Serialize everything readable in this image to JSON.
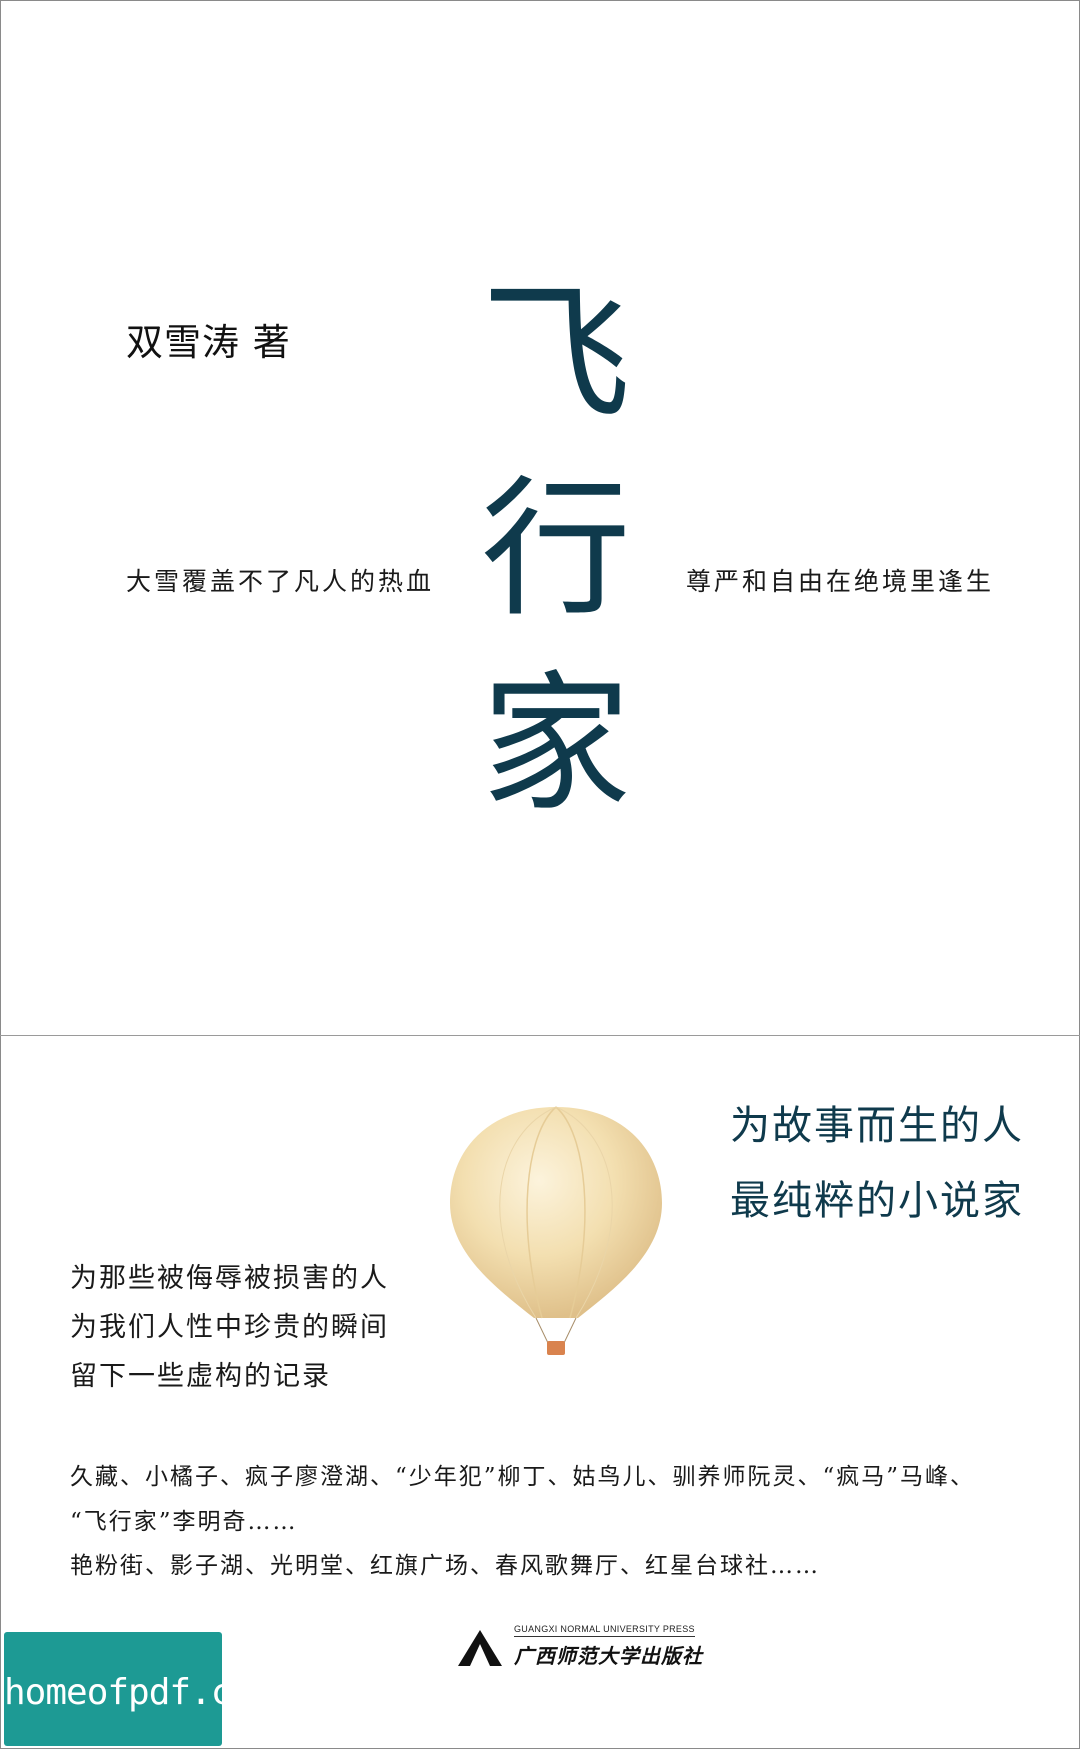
{
  "cover": {
    "author": "双雪涛 著",
    "title_chars": [
      "飞",
      "行",
      "家"
    ],
    "tagline_left": "大雪覆盖不了凡人的热血",
    "tagline_right": "尊严和自由在绝境里逢生"
  },
  "back": {
    "slogan": [
      "为故事而生的人",
      "最纯粹的小说家"
    ],
    "dedication": [
      "为那些被侮辱被损害的人",
      "为我们人性中珍贵的瞬间",
      "留下一些虚构的记录"
    ],
    "names": [
      "久藏、小橘子、疯子廖澄湖、“少年犯”柳丁、姑鸟儿、驯养师阮灵、“疯马”马峰、",
      "“飞行家”李明奇……",
      "艳粉街、影子湖、光明堂、红旗广场、春风歌舞厅、红星台球社……"
    ],
    "publisher_en": "GUANGXI NORMAL UNIVERSITY PRESS",
    "publisher_cn": "广西师范大学出版社"
  },
  "watermark": {
    "text": "homeofpdf.com"
  },
  "colors": {
    "title": "#0f3a4c",
    "watermark_bg": "#1d9a94",
    "balloon": "#f3dfb0"
  }
}
